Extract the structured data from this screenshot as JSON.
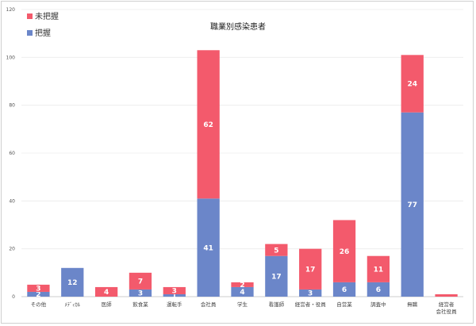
{
  "chart_data": {
    "type": "bar",
    "stacked": true,
    "title": "職業別感染患者",
    "xlabel": "",
    "ylabel": "",
    "ylim": [
      0,
      120
    ],
    "yticks": [
      0,
      20,
      40,
      60,
      80,
      100,
      120
    ],
    "grid": true,
    "legend_position": "top-left",
    "categories": [
      [
        "その他"
      ],
      [
        "ﾒﾃﾞｨｶﾙ"
      ],
      [
        "医師"
      ],
      [
        "飲食業"
      ],
      [
        "運転手"
      ],
      [
        "会社員"
      ],
      [
        "学生"
      ],
      [
        "看護師"
      ],
      [
        "経営者・役員"
      ],
      [
        "自営業"
      ],
      [
        "調査中"
      ],
      [
        "無職"
      ],
      [
        "経営者",
        "会社役員"
      ]
    ],
    "series": [
      {
        "name": "把握",
        "color": "#6b86c9",
        "values": [
          2,
          12,
          0,
          3,
          1,
          41,
          4,
          17,
          3,
          6,
          6,
          77,
          0
        ],
        "labels": [
          "2",
          "12",
          "",
          "3",
          "1",
          "41",
          "4",
          "17",
          "3",
          "6",
          "6",
          "77",
          ""
        ]
      },
      {
        "name": "未把握",
        "color": "#f35a6c",
        "values": [
          3,
          0,
          4,
          7,
          3,
          62,
          2,
          5,
          17,
          26,
          11,
          24,
          1
        ],
        "labels": [
          "3",
          "",
          "4",
          "7",
          "3",
          "62",
          "2",
          "5",
          "17",
          "26",
          "11",
          "24",
          ""
        ]
      }
    ]
  }
}
